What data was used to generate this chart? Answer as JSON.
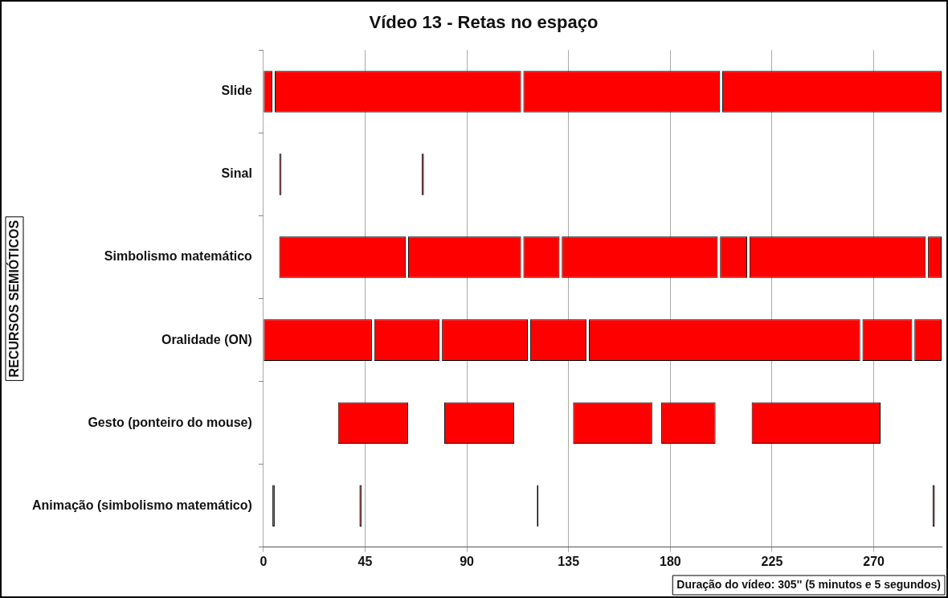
{
  "chart_data": {
    "type": "bar",
    "orientation": "horizontal",
    "title": "Vídeo 13 - Retas no espaço",
    "ylabel": "RECURSOS SEMIÓTICOS",
    "categories": [
      "Slide",
      "Sinal",
      "Simbolismo matemático",
      "Oralidade (ON)",
      "Gesto (ponteiro do mouse)",
      "Animação (simbolismo matemático)"
    ],
    "series": [
      {
        "colors": [
          "#ff0000",
          "#7f1010",
          "#ff0000",
          "#ff0000",
          "#ff0000",
          "#c03030"
        ],
        "base": [
          0,
          7,
          7,
          0,
          33,
          4
        ],
        "values": [
          4,
          1,
          56,
          48,
          31,
          1
        ]
      },
      {
        "colors": [
          "#ff0000",
          "#7f1010",
          "#ff0000",
          "#ff0000",
          "#ff0000",
          "#7f1010"
        ],
        "base": [
          5,
          70,
          64,
          49,
          80,
          42.5
        ],
        "values": [
          109,
          1,
          50,
          29,
          31,
          1
        ]
      },
      {
        "color": "#ff0000",
        "colors": [
          "#ff0000",
          null,
          "#ff0000",
          "#ff0000",
          "#ff0000",
          "#000000"
        ],
        "base": [
          115,
          null,
          115,
          79,
          137,
          121
        ],
        "values": [
          87,
          null,
          16,
          38,
          35,
          0.6
        ]
      },
      {
        "color": "#ff0000",
        "colors": [
          "#ff0000",
          null,
          "#ff0000",
          "#ff0000",
          "#ff0000",
          "#5a0f0f"
        ],
        "base": [
          203,
          null,
          132,
          118,
          176,
          296
        ],
        "values": [
          97,
          null,
          69,
          25,
          24,
          1
        ]
      },
      {
        "color": "#ff0000",
        "base": [
          null,
          null,
          202,
          144,
          216,
          null
        ],
        "values": [
          null,
          null,
          12,
          120,
          57,
          null
        ]
      },
      {
        "color": "#ff0000",
        "base": [
          null,
          null,
          215,
          265,
          null,
          null
        ],
        "values": [
          null,
          null,
          78,
          22,
          null,
          null
        ]
      },
      {
        "color": "#ff0000",
        "base": [
          null,
          null,
          294,
          288,
          null,
          null
        ],
        "values": [
          null,
          null,
          6,
          12,
          null,
          null
        ]
      }
    ],
    "xlim": [
      0,
      300
    ],
    "xticks": [
      0,
      45,
      90,
      135,
      180,
      225,
      270
    ],
    "grid": "x",
    "legend": false,
    "annotations": [
      "Duração do vídeo: 305'' (5 minutos e 5 segundos)"
    ]
  }
}
